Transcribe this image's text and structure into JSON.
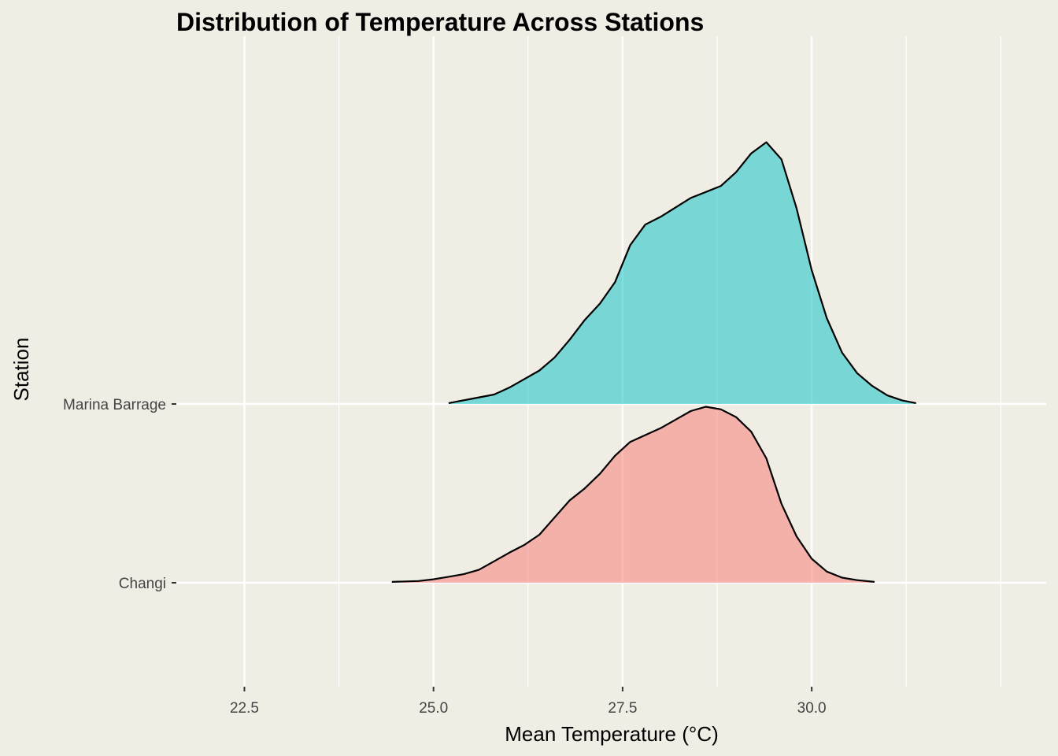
{
  "chart_data": {
    "type": "ridgeline",
    "title": "Distribution of Temperature Across Stations",
    "xlabel": "Mean Temperature (°C)",
    "ylabel": "Station",
    "xlim": [
      21.6,
      33.1
    ],
    "x_ticks": [
      "22.5",
      "25.0",
      "27.5",
      "30.0"
    ],
    "grid": true,
    "categories": [
      "Changi",
      "Marina Barrage"
    ],
    "series": [
      {
        "name": "Changi",
        "color": "#F8766D",
        "x": [
          24.45,
          24.8,
          25.0,
          25.2,
          25.4,
          25.6,
          25.8,
          26.0,
          26.2,
          26.4,
          26.6,
          26.8,
          27.0,
          27.2,
          27.4,
          27.6,
          27.8,
          28.0,
          28.2,
          28.4,
          28.6,
          28.8,
          29.0,
          29.2,
          29.4,
          29.6,
          29.8,
          30.0,
          30.2,
          30.4,
          30.6,
          30.83
        ],
        "density": [
          0.01,
          0.02,
          0.04,
          0.07,
          0.1,
          0.15,
          0.25,
          0.35,
          0.44,
          0.56,
          0.76,
          0.96,
          1.1,
          1.27,
          1.48,
          1.64,
          1.72,
          1.8,
          1.9,
          2.0,
          2.05,
          2.02,
          1.93,
          1.76,
          1.45,
          0.92,
          0.54,
          0.28,
          0.13,
          0.06,
          0.03,
          0.01
        ]
      },
      {
        "name": "Marina Barrage",
        "color": "#00BFC4",
        "x": [
          25.2,
          25.5,
          25.8,
          26.0,
          26.2,
          26.4,
          26.6,
          26.8,
          27.0,
          27.2,
          27.4,
          27.6,
          27.8,
          28.0,
          28.2,
          28.4,
          28.6,
          28.8,
          29.0,
          29.2,
          29.4,
          29.6,
          29.8,
          30.0,
          30.2,
          30.4,
          30.6,
          30.8,
          31.0,
          31.2,
          31.38
        ],
        "density": [
          0.01,
          0.06,
          0.11,
          0.19,
          0.29,
          0.39,
          0.54,
          0.75,
          0.98,
          1.17,
          1.42,
          1.85,
          2.09,
          2.18,
          2.29,
          2.4,
          2.47,
          2.54,
          2.7,
          2.92,
          3.05,
          2.85,
          2.28,
          1.56,
          1.0,
          0.6,
          0.36,
          0.21,
          0.1,
          0.04,
          0.01
        ]
      }
    ]
  }
}
